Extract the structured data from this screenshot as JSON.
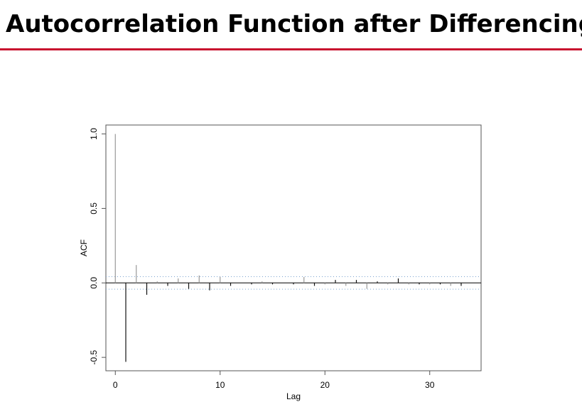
{
  "slide": {
    "title": "Autocorrelation Function after Differencing",
    "accent_color": "#c8102e"
  },
  "chart_data": {
    "type": "bar",
    "title": "",
    "xlabel": "Lag",
    "ylabel": "ACF",
    "xlim": [
      -0.9,
      34.9
    ],
    "ylim": [
      -0.59,
      1.06
    ],
    "x_ticks": [
      0,
      10,
      20,
      30
    ],
    "y_ticks": [
      -0.5,
      0.0,
      0.5,
      1.0
    ],
    "y_tick_labels": [
      "-0.5",
      "0.0",
      "0.5",
      "1.0"
    ],
    "confidence_band": [
      -0.042,
      0.042
    ],
    "grid": false,
    "legend": "none",
    "lags": [
      0,
      1,
      2,
      3,
      4,
      5,
      6,
      7,
      8,
      9,
      10,
      11,
      12,
      13,
      14,
      15,
      16,
      17,
      18,
      19,
      20,
      21,
      22,
      23,
      24,
      25,
      26,
      27,
      28,
      29,
      30,
      31,
      32,
      33
    ],
    "values": [
      1.0,
      -0.53,
      0.12,
      -0.08,
      0.01,
      -0.02,
      0.03,
      -0.04,
      0.05,
      -0.05,
      0.04,
      -0.02,
      0.0,
      -0.01,
      0.01,
      -0.01,
      0.0,
      -0.01,
      0.04,
      -0.02,
      -0.01,
      0.02,
      -0.02,
      0.02,
      -0.04,
      0.01,
      -0.01,
      0.03,
      -0.01,
      -0.01,
      -0.01,
      -0.01,
      -0.02,
      -0.02
    ]
  }
}
